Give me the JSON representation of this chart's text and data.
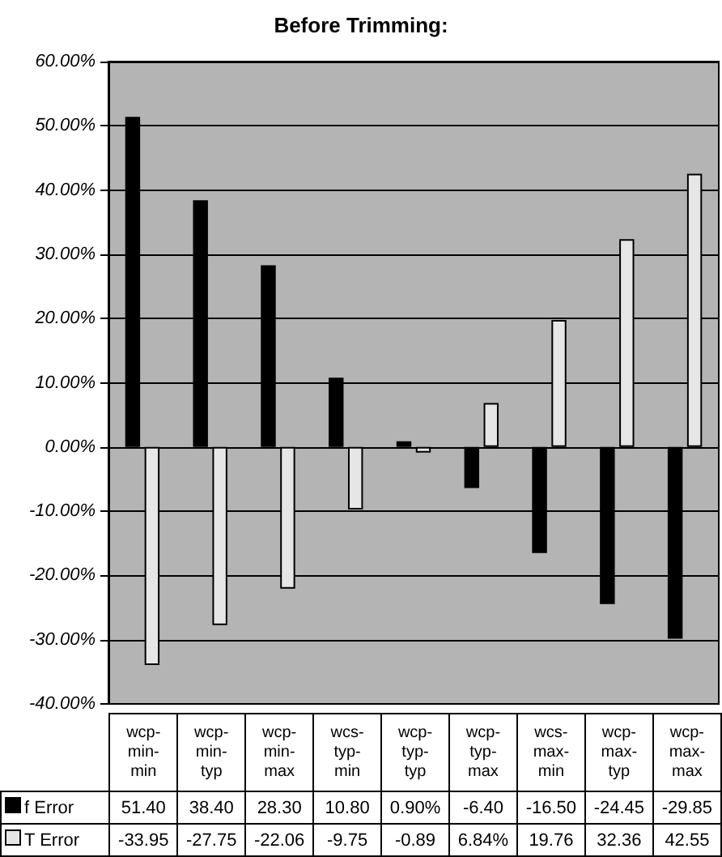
{
  "chart_data": {
    "type": "bar",
    "title": "Before Trimming:",
    "categories": [
      "wcp-min-min",
      "wcp-min-typ",
      "wcp-min-max",
      "wcs-typ-min",
      "wcp-typ-typ",
      "wcp-typ-max",
      "wcs-max-min",
      "wcp-max-typ",
      "wcp-max-max"
    ],
    "series": [
      {
        "name": "f Error",
        "color": "#000000",
        "values": [
          51.4,
          38.4,
          28.3,
          10.8,
          0.9,
          -6.4,
          -16.5,
          -24.45,
          -29.85
        ],
        "value_labels": [
          "51.40",
          "38.40",
          "28.30",
          "10.80",
          "0.90%",
          "-6.40",
          "-16.50",
          "-24.45",
          "-29.85"
        ]
      },
      {
        "name": "T Error",
        "color": "#e6e6e6",
        "values": [
          -33.95,
          -27.75,
          -22.06,
          -9.75,
          -0.89,
          6.84,
          19.76,
          32.36,
          42.55
        ],
        "value_labels": [
          "-33.95",
          "-27.75",
          "-22.06",
          "-9.75",
          "-0.89",
          "6.84%",
          "19.76",
          "32.36",
          "42.55"
        ]
      }
    ],
    "ylim": [
      -40,
      60
    ],
    "yticks": [
      {
        "value": -40,
        "label": "-40.00%"
      },
      {
        "value": -30,
        "label": "-30.00%"
      },
      {
        "value": -20,
        "label": "-20.00%"
      },
      {
        "value": -10,
        "label": "-10.00%"
      },
      {
        "value": 0,
        "label": "0.00%"
      },
      {
        "value": 10,
        "label": "10.00%"
      },
      {
        "value": 20,
        "label": "20.00%"
      },
      {
        "value": 30,
        "label": "30.00%"
      },
      {
        "value": 40,
        "label": "40.00%"
      },
      {
        "value": 50,
        "label": "50.00%"
      },
      {
        "value": 60,
        "label": "60.00%"
      }
    ],
    "grid": "y",
    "legend": "bottom"
  }
}
